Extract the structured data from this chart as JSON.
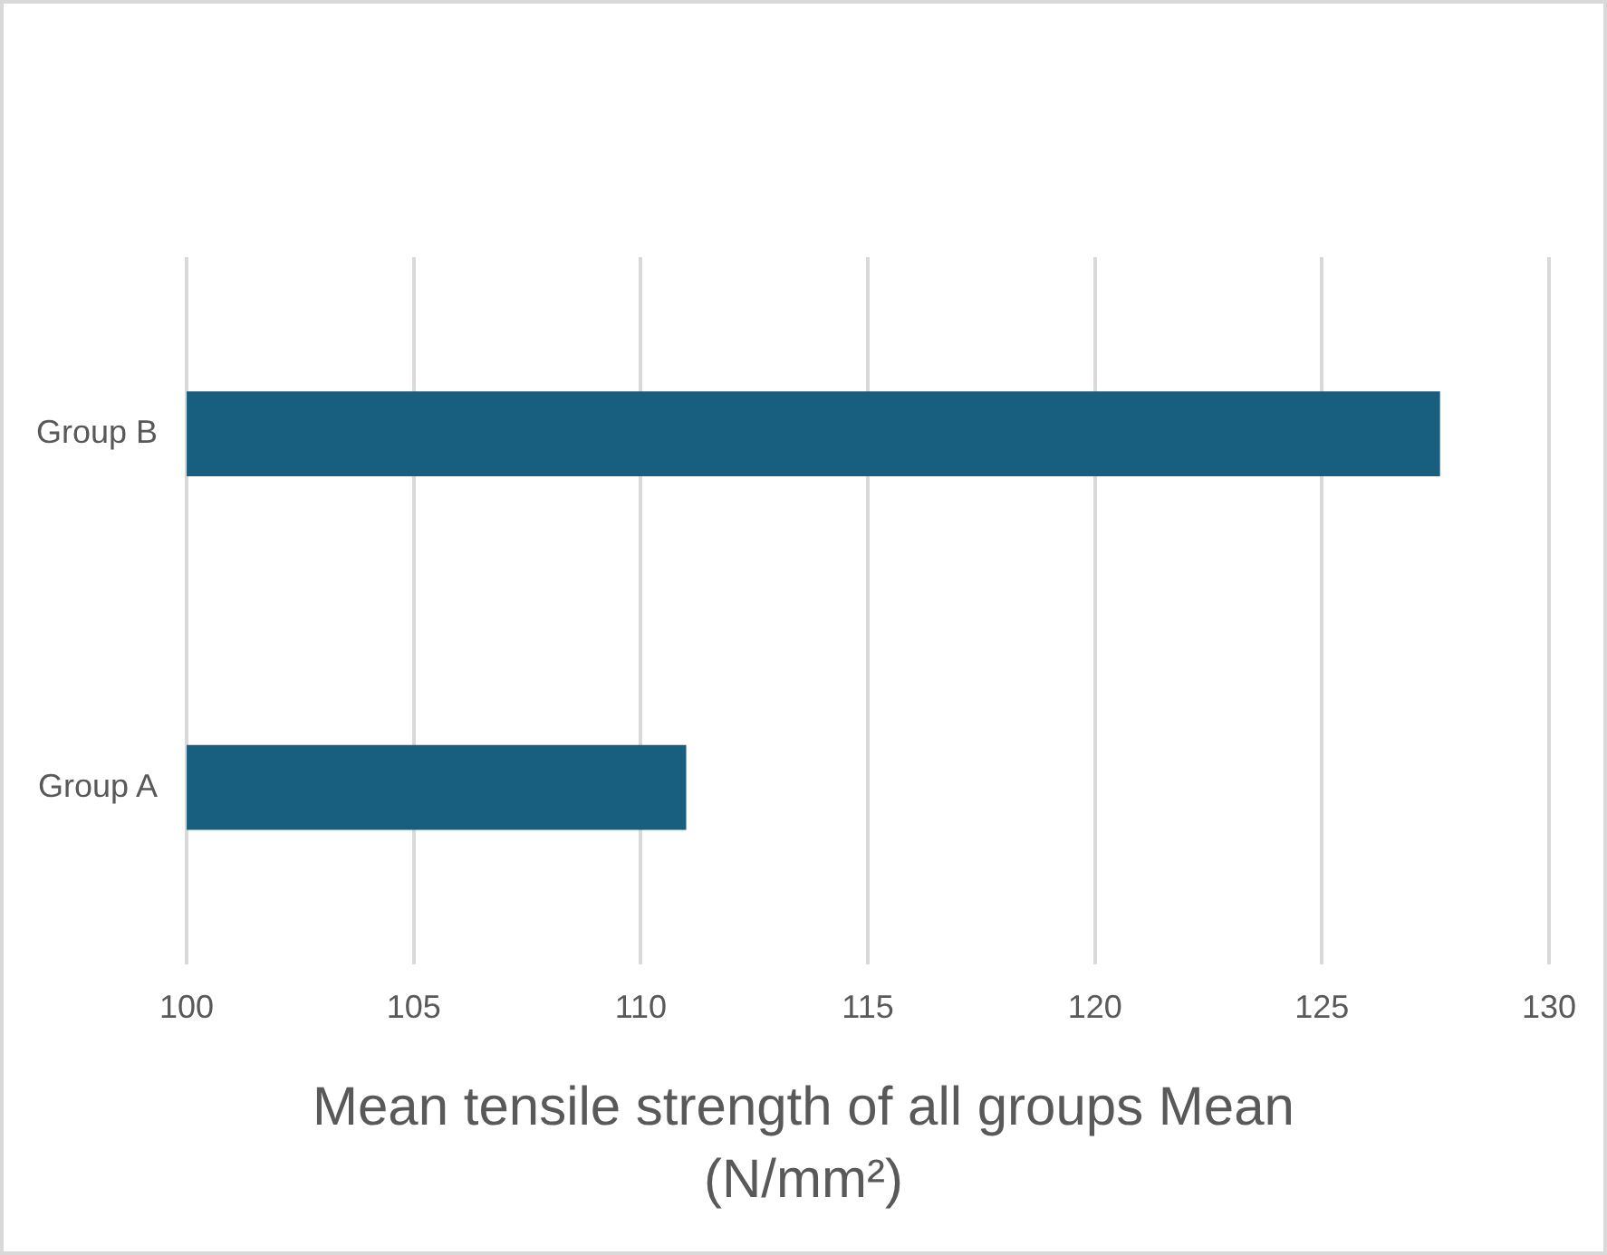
{
  "chart_data": {
    "type": "bar",
    "orientation": "horizontal",
    "categories": [
      "Group B",
      "Group A"
    ],
    "values": [
      127.6,
      111.0
    ],
    "color": "#175e7f",
    "xlim": [
      100,
      130
    ],
    "xticks": [
      100,
      105,
      110,
      115,
      120,
      125,
      130
    ],
    "grid": "x",
    "legend": false,
    "xlabel": "Mean tensile strength of all groups Mean (N/mm²)"
  }
}
